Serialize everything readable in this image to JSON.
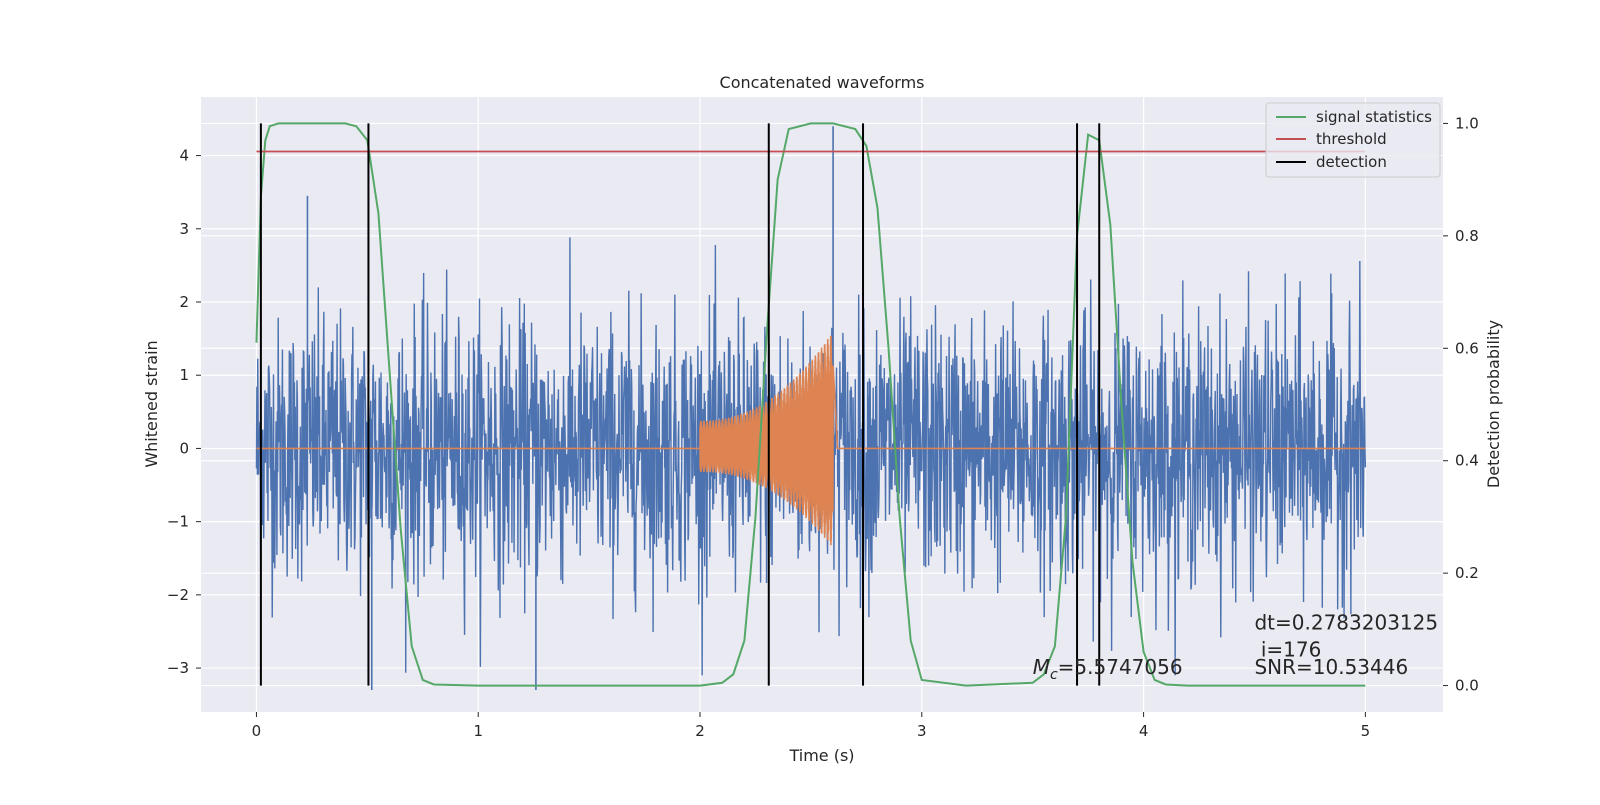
{
  "chart_data": {
    "type": "line",
    "title": "Concatenated waveforms",
    "xlabel": "Time (s)",
    "ylabel_left": "Whitened strain",
    "ylabel_right": "Detection probability",
    "xlim": [
      -0.25,
      5.35
    ],
    "ylim_left": [
      -3.6,
      4.8
    ],
    "ylim_right": [
      -0.047,
      1.047
    ],
    "x_ticks": [
      0,
      1,
      2,
      3,
      4,
      5
    ],
    "y_ticks_left": [
      -3,
      -2,
      -1,
      0,
      1,
      2,
      3,
      4
    ],
    "y_ticks_right": [
      0.0,
      0.2,
      0.4,
      0.6,
      0.8,
      1.0
    ],
    "grid": true,
    "legend_position": "top-right",
    "colors": {
      "strain": "#4c72b0",
      "injection": "#dd8452",
      "signal": "#55a868",
      "threshold": "#c44e52",
      "detection": "#000000",
      "background": "#eaeaf2"
    },
    "series": [
      {
        "name": "",
        "kind": "whitened-strain-noise",
        "axis": "left",
        "x_range": [
          0,
          5
        ],
        "typical_amplitude": 1.6,
        "extreme_peaks": [
          {
            "x": 0.23,
            "y": 3.45
          },
          {
            "x": 1.26,
            "y": -3.3
          },
          {
            "x": 2.6,
            "y": 4.4
          },
          {
            "x": 0.52,
            "y": -3.3
          }
        ]
      },
      {
        "name": "",
        "kind": "chirp-injection",
        "axis": "left",
        "x_range": [
          2.0,
          2.6
        ],
        "amplitude_start": 0.38,
        "amplitude_end": 1.6
      },
      {
        "name": "signal statistics",
        "axis": "right",
        "x": [
          0.0,
          0.02,
          0.04,
          0.06,
          0.1,
          0.2,
          0.3,
          0.4,
          0.45,
          0.5,
          0.55,
          0.6,
          0.65,
          0.7,
          0.75,
          0.8,
          1.0,
          1.5,
          2.0,
          2.1,
          2.15,
          2.2,
          2.25,
          2.3,
          2.35,
          2.4,
          2.5,
          2.6,
          2.7,
          2.75,
          2.8,
          2.85,
          2.9,
          2.95,
          3.0,
          3.2,
          3.5,
          3.55,
          3.6,
          3.65,
          3.7,
          3.75,
          3.8,
          3.85,
          3.9,
          3.95,
          4.0,
          4.05,
          4.1,
          4.2,
          4.5,
          5.0
        ],
        "values": [
          0.61,
          0.87,
          0.97,
          0.995,
          1.0,
          1.0,
          1.0,
          1.0,
          0.995,
          0.97,
          0.84,
          0.56,
          0.28,
          0.07,
          0.01,
          0.002,
          0.0,
          0.0,
          0.0,
          0.005,
          0.02,
          0.08,
          0.3,
          0.62,
          0.9,
          0.99,
          1.0,
          1.0,
          0.99,
          0.96,
          0.85,
          0.6,
          0.3,
          0.08,
          0.01,
          0.0,
          0.005,
          0.02,
          0.07,
          0.3,
          0.8,
          0.98,
          0.97,
          0.82,
          0.5,
          0.22,
          0.06,
          0.01,
          0.002,
          0.0,
          0.0,
          0.0
        ]
      },
      {
        "name": "threshold",
        "axis": "right",
        "x": [
          0,
          5
        ],
        "values": [
          0.95,
          0.95
        ]
      },
      {
        "name": "detection",
        "axis": "right",
        "vlines": [
          0.02,
          0.505,
          2.31,
          2.735,
          3.7,
          3.8
        ],
        "span": [
          0.0,
          1.0
        ]
      }
    ],
    "annotations": [
      {
        "text": "dt=0.2783203125",
        "x": 4.5,
        "y_left": -2.47
      },
      {
        "text": " i=176",
        "x": 4.5,
        "y_left": -2.84
      },
      {
        "text": "SNR=10.53446",
        "x": 4.5,
        "y_left": -3.08
      },
      {
        "text_main": "M",
        "text_sub": "c",
        "text_rest": "=5.5747056",
        "x": 3.5,
        "y_left": -3.08
      }
    ]
  }
}
